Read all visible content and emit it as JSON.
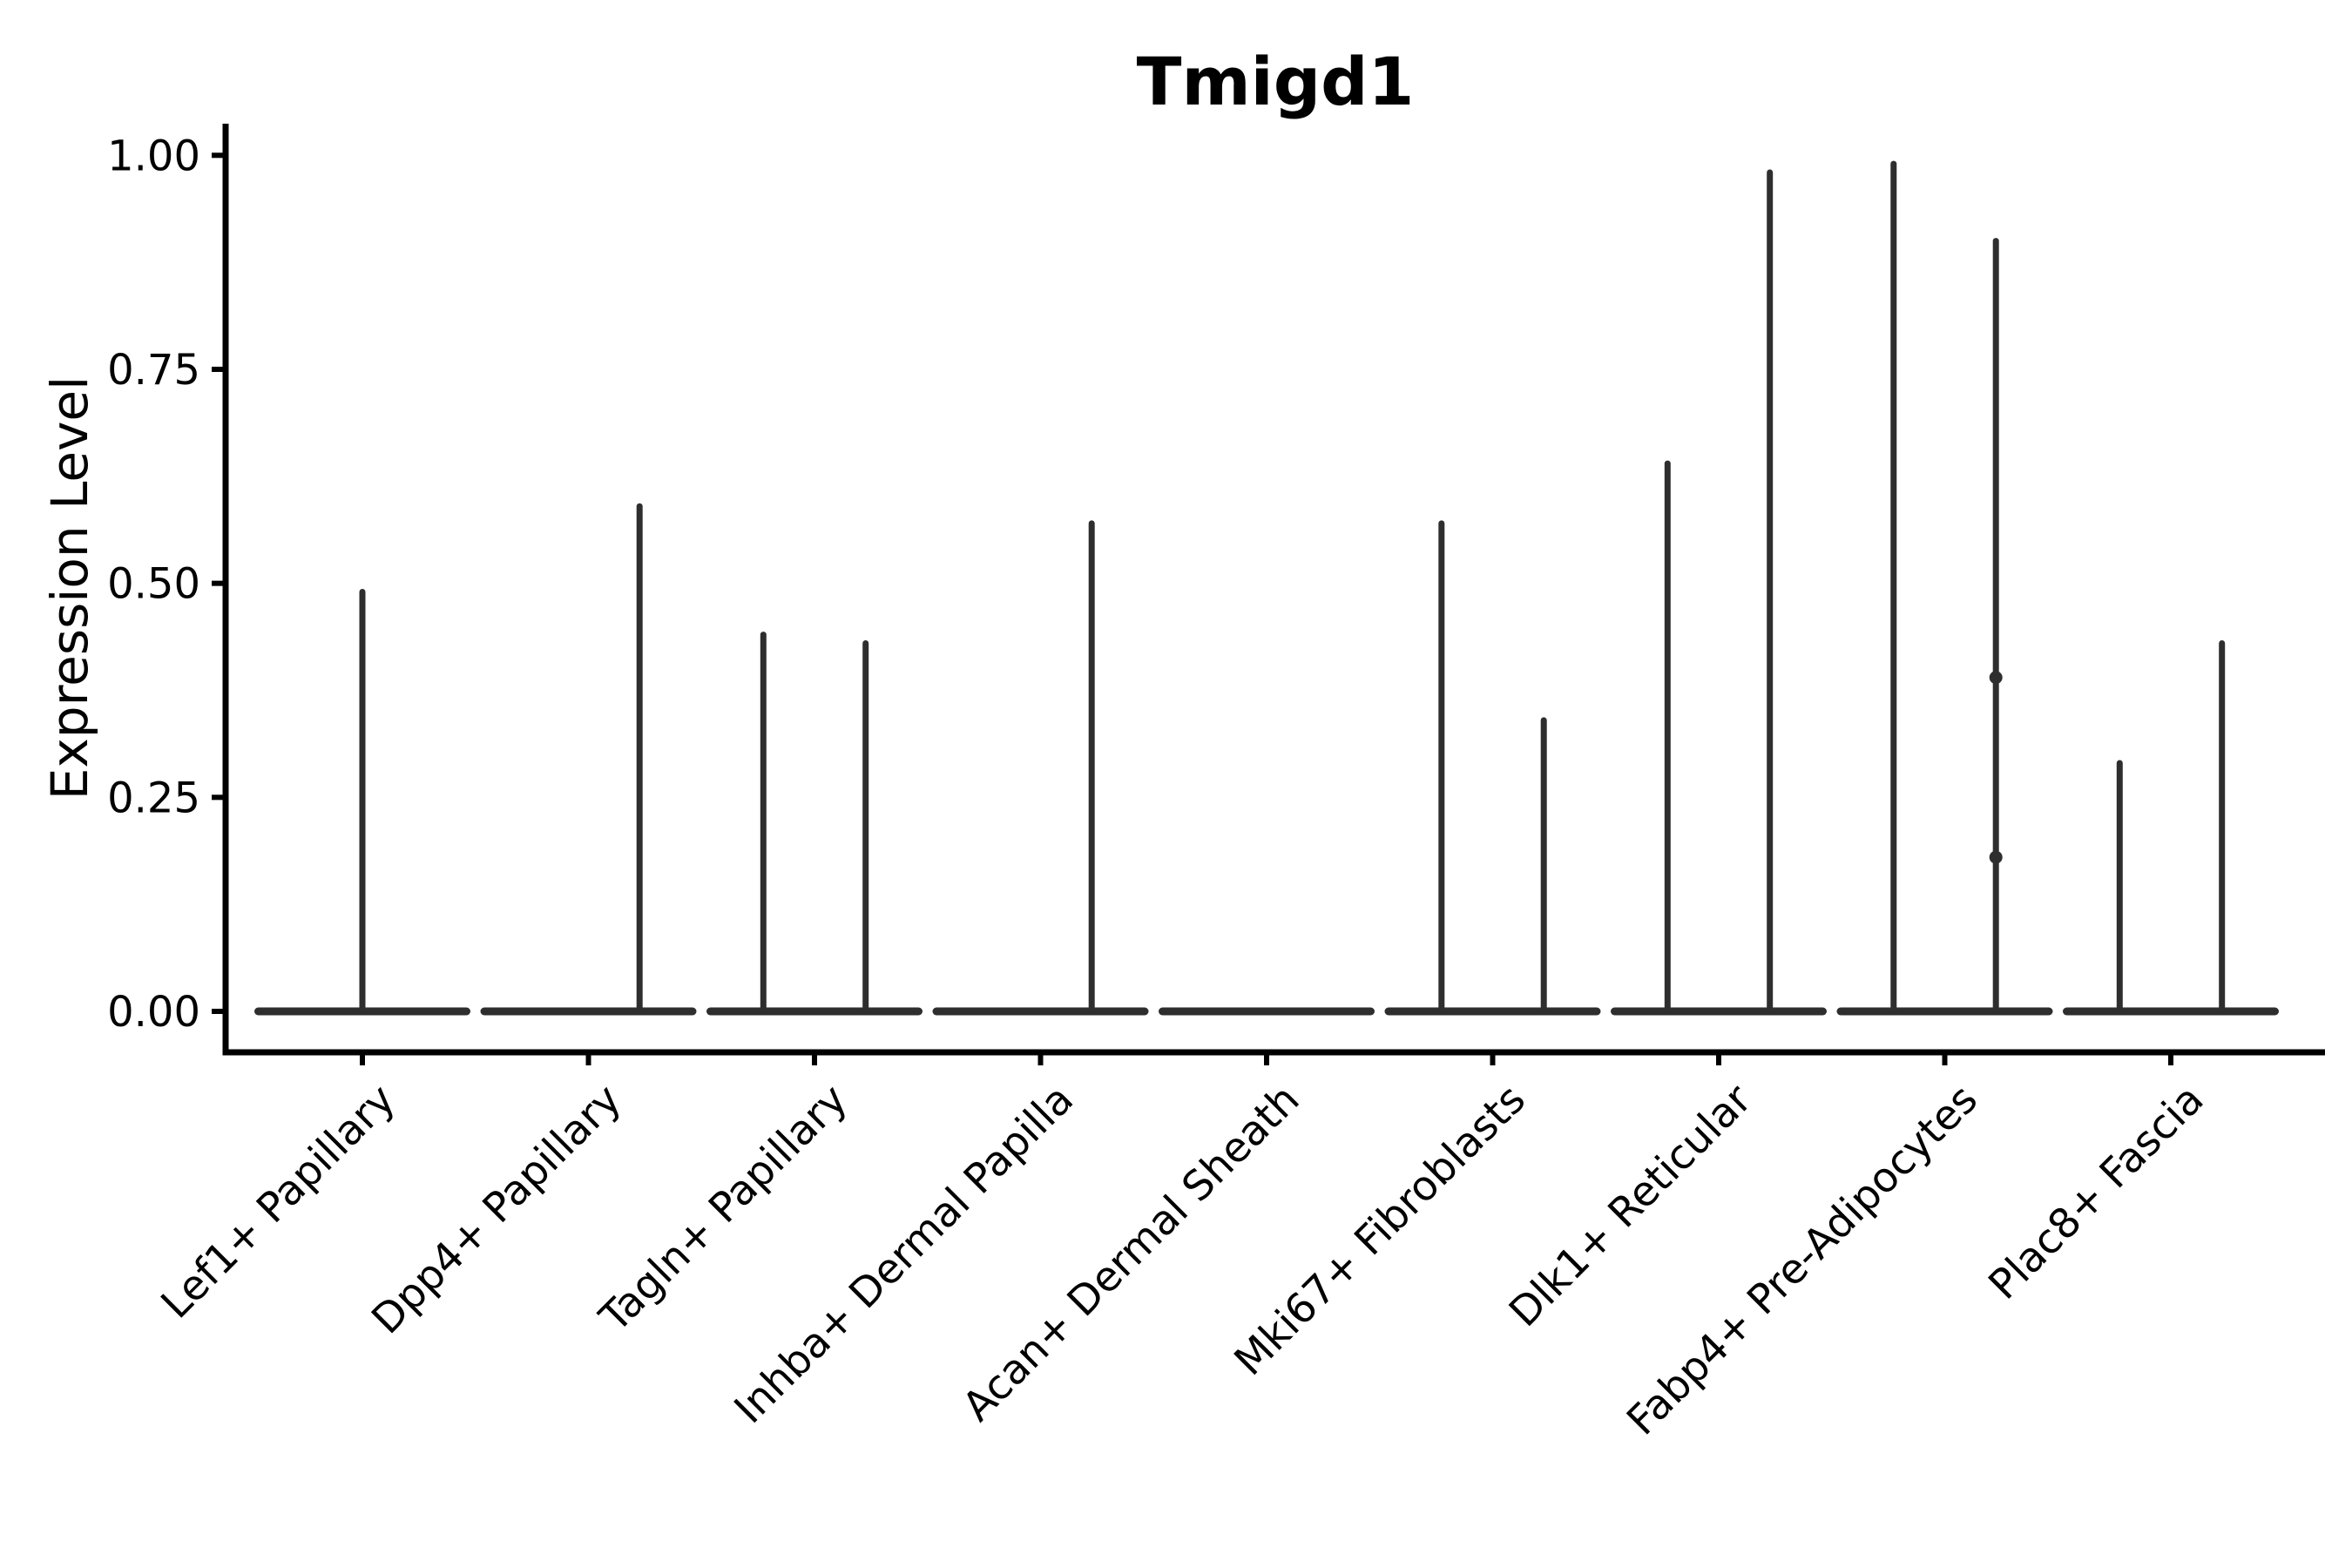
{
  "figure": {
    "title": "Tmigd1",
    "background_color": "#ffffff",
    "text_color": "#000000",
    "violin_color": "#2e2e2e"
  },
  "chart_data": {
    "type": "violin",
    "title": "Tmigd1",
    "xlabel": "",
    "ylabel": "Expression Level",
    "ylim": [
      0,
      1.04
    ],
    "grid": false,
    "legend": null,
    "yticks": [
      {
        "value": 0.0,
        "label": "0.00"
      },
      {
        "value": 0.25,
        "label": "0.25"
      },
      {
        "value": 0.5,
        "label": "0.50"
      },
      {
        "value": 0.75,
        "label": "0.75"
      },
      {
        "value": 1.0,
        "label": "1.00"
      }
    ],
    "categories": [
      "Lef1+ Papillary",
      "Dpp4+ Papillary",
      "Tagln+ Papillary",
      "Inhba+ Dermal Papilla",
      "Acan+ Dermal Sheath",
      "Mki67+ Fibroblasts",
      "Dlk1+ Reticular",
      "Fabp4+ Pre-Adipocytes",
      "Plac8+ Fascia"
    ],
    "violins": [
      {
        "category_index": 0,
        "category": "Lef1+ Papillary",
        "slot": "center",
        "peak": 0.49,
        "points": []
      },
      {
        "category_index": 1,
        "category": "Dpp4+ Papillary",
        "slot": "right",
        "peak": 0.59,
        "points": []
      },
      {
        "category_index": 2,
        "category": "Tagln+ Papillary",
        "slot": "left",
        "peak": 0.44,
        "points": []
      },
      {
        "category_index": 2,
        "category": "Tagln+ Papillary",
        "slot": "right",
        "peak": 0.43,
        "points": []
      },
      {
        "category_index": 3,
        "category": "Inhba+ Dermal Papilla",
        "slot": "right",
        "peak": 0.57,
        "points": []
      },
      {
        "category_index": 5,
        "category": "Mki67+ Fibroblasts",
        "slot": "left",
        "peak": 0.57,
        "points": []
      },
      {
        "category_index": 5,
        "category": "Mki67+ Fibroblasts",
        "slot": "right",
        "peak": 0.34,
        "points": []
      },
      {
        "category_index": 6,
        "category": "Dlk1+ Reticular",
        "slot": "left",
        "peak": 0.64,
        "points": []
      },
      {
        "category_index": 6,
        "category": "Dlk1+ Reticular",
        "slot": "right",
        "peak": 0.98,
        "points": []
      },
      {
        "category_index": 7,
        "category": "Fabp4+ Pre-Adipocytes",
        "slot": "left",
        "peak": 0.99,
        "points": []
      },
      {
        "category_index": 7,
        "category": "Fabp4+ Pre-Adipocytes",
        "slot": "right",
        "peak": 0.9,
        "points": [
          0.39,
          0.18
        ]
      },
      {
        "category_index": 8,
        "category": "Plac8+ Fascia",
        "slot": "left",
        "peak": 0.29,
        "points": []
      },
      {
        "category_index": 8,
        "category": "Plac8+ Fascia",
        "slot": "right",
        "peak": 0.43,
        "points": []
      }
    ],
    "notes": "Expression is 0 for nearly all cells in every cluster: each violin is a flat line at 0 with a thin spike up to the cluster's maximum expression. Acan+ Dermal Sheath has no cells above 0."
  }
}
